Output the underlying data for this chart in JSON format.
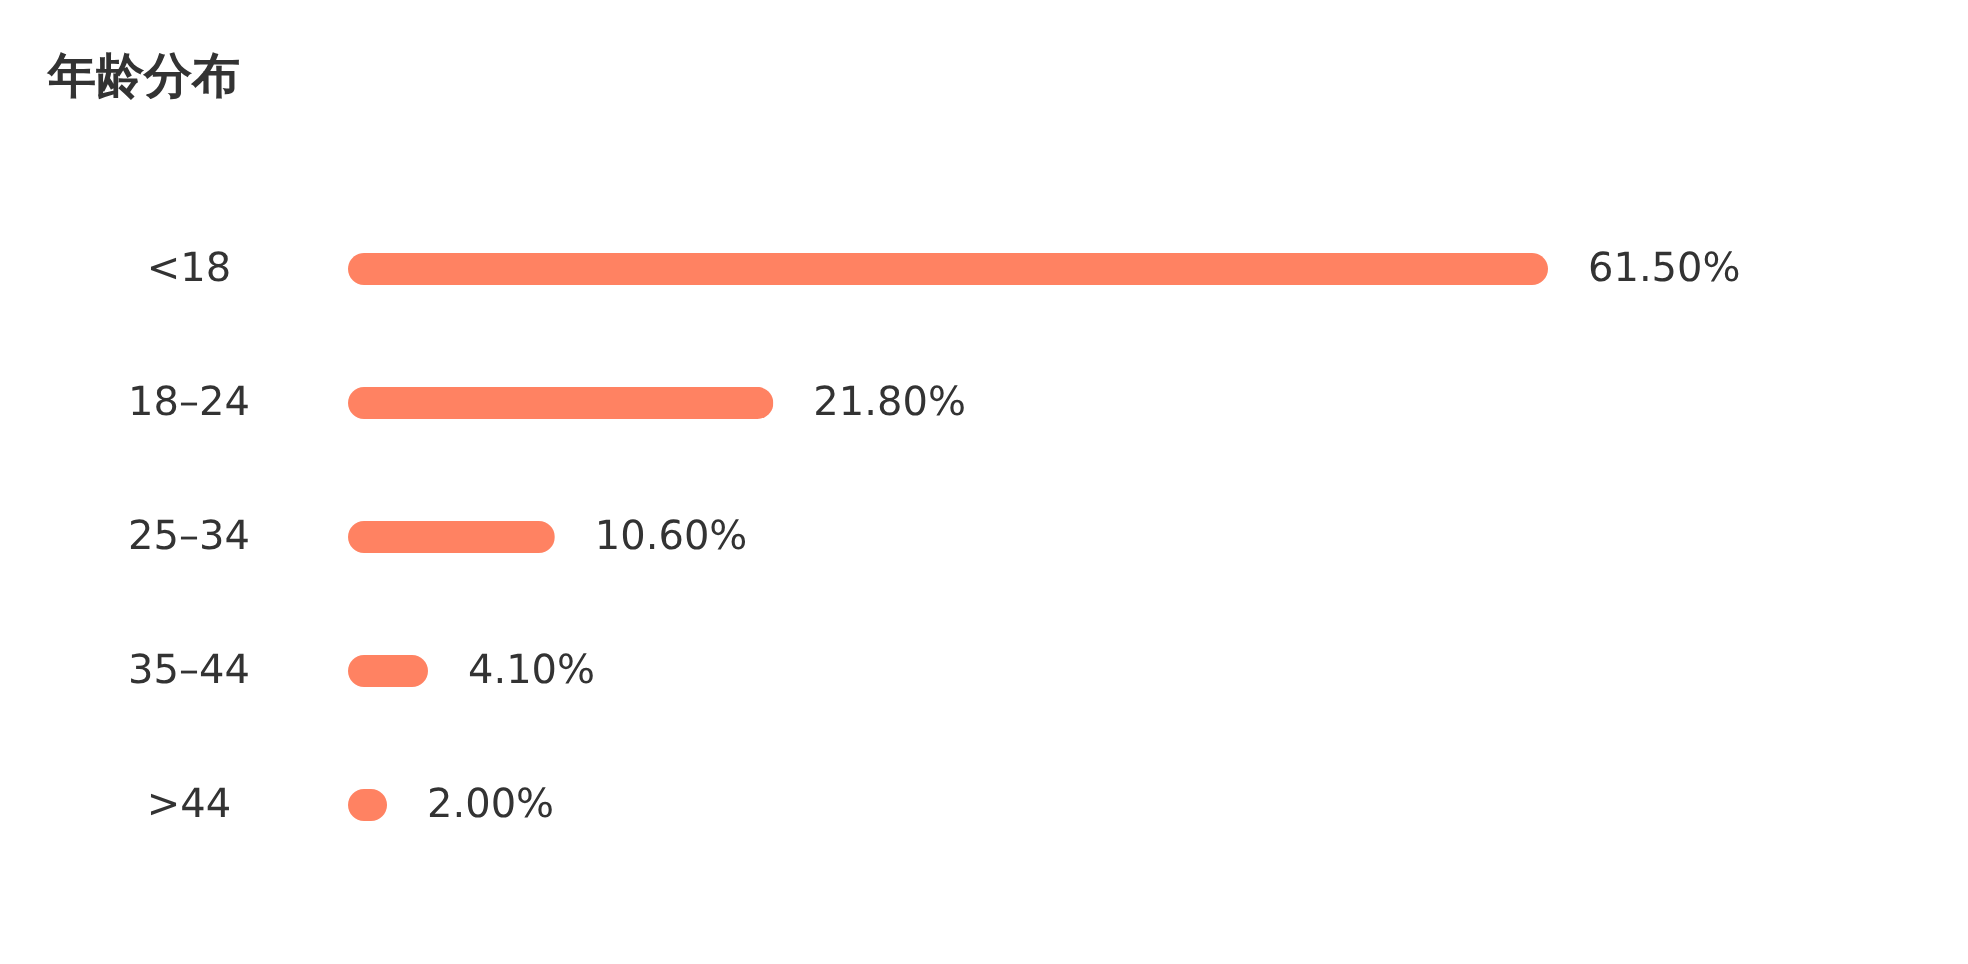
{
  "chart_data": {
    "type": "bar",
    "orientation": "horizontal",
    "title": "年龄分布",
    "categories": [
      "<18",
      "18–24",
      "25–34",
      "35–44",
      ">44"
    ],
    "values": [
      61.5,
      21.8,
      10.6,
      4.1,
      2.0
    ],
    "value_labels": [
      "61.50%",
      "21.80%",
      "10.60%",
      "4.10%",
      "2.00%"
    ],
    "color": "#ff8262",
    "tick_labels": "y",
    "grid": false
  }
}
